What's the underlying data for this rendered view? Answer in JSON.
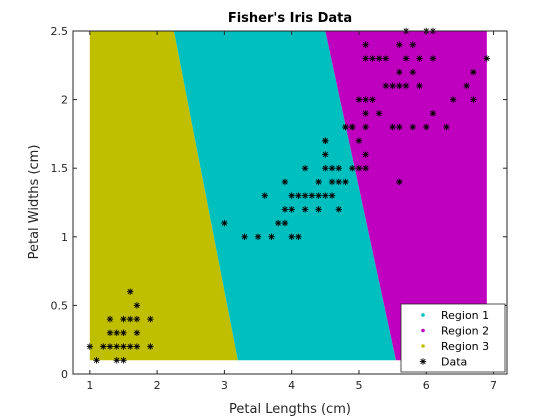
{
  "chart_data": {
    "type": "scatter",
    "title": "Fisher's Iris Data",
    "xlabel": "Petal Lengths (cm)",
    "ylabel": "Petal Widths (cm)",
    "xlim": [
      0.75,
      7.2
    ],
    "ylim": [
      0,
      2.5
    ],
    "x_ticks": [
      1,
      2,
      3,
      4,
      5,
      6,
      7
    ],
    "x_tick_labels": [
      "1",
      "2",
      "3",
      "4",
      "5",
      "6",
      "7"
    ],
    "y_ticks": [
      0,
      0.5,
      1,
      1.5,
      2,
      2.5
    ],
    "y_tick_labels": [
      "0",
      "0.5",
      "1",
      "1.5",
      "2",
      "2.5"
    ],
    "grid": false,
    "legend_position": "bottom-right",
    "regions": [
      {
        "name": "Region 3",
        "color": "#bfbf00",
        "polygon": [
          [
            1.0,
            0.1
          ],
          [
            3.2,
            0.1
          ],
          [
            2.25,
            2.5
          ],
          [
            1.0,
            2.5
          ]
        ]
      },
      {
        "name": "Region 1",
        "color": "#00bfbf",
        "polygon": [
          [
            3.2,
            0.1
          ],
          [
            5.55,
            0.1
          ],
          [
            4.5,
            2.5
          ],
          [
            2.25,
            2.5
          ]
        ]
      },
      {
        "name": "Region 2",
        "color": "#bf00bf",
        "polygon": [
          [
            5.55,
            0.1
          ],
          [
            6.9,
            0.1
          ],
          [
            6.9,
            2.5
          ],
          [
            4.5,
            2.5
          ]
        ]
      }
    ],
    "legend": [
      {
        "label": "Region 1",
        "color": "#00bfbf",
        "marker": "dot"
      },
      {
        "label": "Region 2",
        "color": "#bf00bf",
        "marker": "dot"
      },
      {
        "label": "Region 3",
        "color": "#bfbf00",
        "marker": "dot"
      },
      {
        "label": "Data",
        "color": "#000000",
        "marker": "*"
      }
    ],
    "series": [
      {
        "name": "Data",
        "color": "#000000",
        "marker": "*",
        "points": [
          [
            1.0,
            0.2
          ],
          [
            1.1,
            0.1
          ],
          [
            1.2,
            0.2
          ],
          [
            1.3,
            0.2
          ],
          [
            1.3,
            0.3
          ],
          [
            1.3,
            0.4
          ],
          [
            1.4,
            0.1
          ],
          [
            1.4,
            0.2
          ],
          [
            1.4,
            0.3
          ],
          [
            1.5,
            0.1
          ],
          [
            1.5,
            0.2
          ],
          [
            1.5,
            0.3
          ],
          [
            1.5,
            0.4
          ],
          [
            1.6,
            0.2
          ],
          [
            1.6,
            0.4
          ],
          [
            1.6,
            0.6
          ],
          [
            1.7,
            0.2
          ],
          [
            1.7,
            0.3
          ],
          [
            1.7,
            0.4
          ],
          [
            1.7,
            0.5
          ],
          [
            1.9,
            0.2
          ],
          [
            1.9,
            0.4
          ],
          [
            3.0,
            1.1
          ],
          [
            3.3,
            1.0
          ],
          [
            3.5,
            1.0
          ],
          [
            3.6,
            1.3
          ],
          [
            3.7,
            1.0
          ],
          [
            3.8,
            1.1
          ],
          [
            3.9,
            1.1
          ],
          [
            3.9,
            1.2
          ],
          [
            3.9,
            1.4
          ],
          [
            4.0,
            1.0
          ],
          [
            4.0,
            1.2
          ],
          [
            4.0,
            1.3
          ],
          [
            4.1,
            1.0
          ],
          [
            4.1,
            1.3
          ],
          [
            4.2,
            1.2
          ],
          [
            4.2,
            1.3
          ],
          [
            4.2,
            1.5
          ],
          [
            4.3,
            1.3
          ],
          [
            4.4,
            1.2
          ],
          [
            4.4,
            1.3
          ],
          [
            4.4,
            1.4
          ],
          [
            4.5,
            1.3
          ],
          [
            4.5,
            1.5
          ],
          [
            4.5,
            1.6
          ],
          [
            4.5,
            1.7
          ],
          [
            4.6,
            1.3
          ],
          [
            4.6,
            1.4
          ],
          [
            4.6,
            1.5
          ],
          [
            4.7,
            1.2
          ],
          [
            4.7,
            1.4
          ],
          [
            4.7,
            1.5
          ],
          [
            4.8,
            1.4
          ],
          [
            4.8,
            1.8
          ],
          [
            4.9,
            1.5
          ],
          [
            4.9,
            1.8
          ],
          [
            5.0,
            1.5
          ],
          [
            5.0,
            1.7
          ],
          [
            5.1,
            1.5
          ],
          [
            5.1,
            1.6
          ],
          [
            5.1,
            1.8
          ],
          [
            4.5,
            1.7
          ],
          [
            4.8,
            1.8
          ],
          [
            4.9,
            1.8
          ],
          [
            5.0,
            2.0
          ],
          [
            5.1,
            1.9
          ],
          [
            5.1,
            2.0
          ],
          [
            5.1,
            2.3
          ],
          [
            5.1,
            2.4
          ],
          [
            5.2,
            2.0
          ],
          [
            5.2,
            2.3
          ],
          [
            5.3,
            1.9
          ],
          [
            5.3,
            2.3
          ],
          [
            5.4,
            2.1
          ],
          [
            5.4,
            2.3
          ],
          [
            5.5,
            1.8
          ],
          [
            5.5,
            2.1
          ],
          [
            5.6,
            1.8
          ],
          [
            5.6,
            2.1
          ],
          [
            5.6,
            2.2
          ],
          [
            5.6,
            2.4
          ],
          [
            5.6,
            1.4
          ],
          [
            5.7,
            2.1
          ],
          [
            5.7,
            2.3
          ],
          [
            5.7,
            2.5
          ],
          [
            5.8,
            1.8
          ],
          [
            5.8,
            2.2
          ],
          [
            5.8,
            2.4
          ],
          [
            5.9,
            2.1
          ],
          [
            5.9,
            2.3
          ],
          [
            6.0,
            1.8
          ],
          [
            6.0,
            2.5
          ],
          [
            6.1,
            1.9
          ],
          [
            6.1,
            2.3
          ],
          [
            6.1,
            2.5
          ],
          [
            6.3,
            1.8
          ],
          [
            6.4,
            2.0
          ],
          [
            6.6,
            2.1
          ],
          [
            6.7,
            2.0
          ],
          [
            6.7,
            2.2
          ],
          [
            6.9,
            2.3
          ]
        ]
      }
    ]
  }
}
